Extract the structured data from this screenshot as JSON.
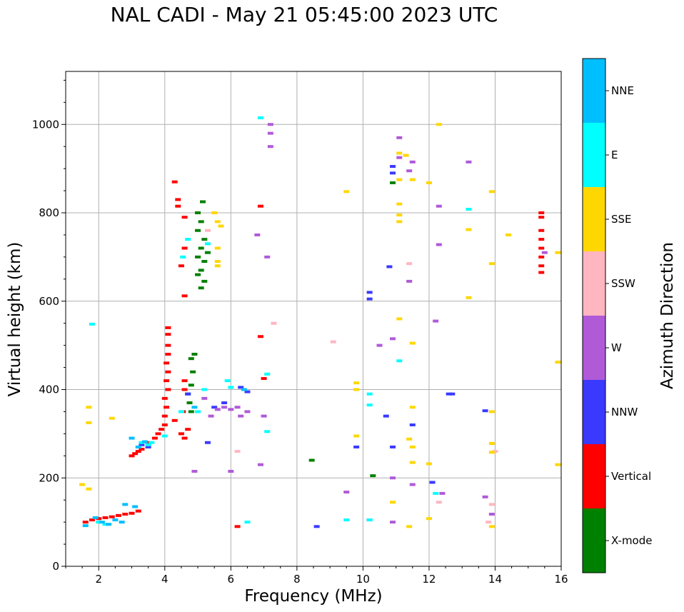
{
  "chart_data": {
    "type": "scatter",
    "title": "NAL CADI - May 21 05:45:00 2023 UTC",
    "xlabel": "Frequency (MHz)",
    "ylabel": "Virtual height (km)",
    "xlim": [
      1,
      16
    ],
    "ylim": [
      0,
      1120
    ],
    "xticks": [
      2,
      4,
      6,
      8,
      10,
      12,
      14,
      16
    ],
    "yticks": [
      0,
      200,
      400,
      600,
      800,
      1000
    ],
    "grid": true,
    "colorbar": {
      "label": "Azimuth Direction",
      "categories": [
        {
          "name": "X-mode",
          "color": "#008000"
        },
        {
          "name": "Vertical",
          "color": "#ff0000"
        },
        {
          "name": "NNW",
          "color": "#3a3aff"
        },
        {
          "name": "W",
          "color": "#b05ad8"
        },
        {
          "name": "SSW",
          "color": "#ffb6c1"
        },
        {
          "name": "SSE",
          "color": "#ffd700"
        },
        {
          "name": "E",
          "color": "#00ffff"
        },
        {
          "name": "NNE",
          "color": "#00bfff"
        }
      ]
    },
    "series": [
      {
        "name": "X-mode",
        "points": [
          [
            5.0,
            800
          ],
          [
            5.1,
            780
          ],
          [
            5.0,
            760
          ],
          [
            5.2,
            740
          ],
          [
            5.1,
            720
          ],
          [
            5.0,
            700
          ],
          [
            5.2,
            690
          ],
          [
            5.1,
            670
          ],
          [
            5.0,
            660
          ],
          [
            5.2,
            645
          ],
          [
            5.1,
            630
          ],
          [
            5.3,
            710
          ],
          [
            4.9,
            480
          ],
          [
            4.8,
            470
          ],
          [
            4.85,
            440
          ],
          [
            4.8,
            410
          ],
          [
            4.7,
            390
          ],
          [
            4.75,
            370
          ],
          [
            4.8,
            350
          ],
          [
            8.45,
            240
          ],
          [
            10.3,
            205
          ],
          [
            10.9,
            868
          ],
          [
            5.15,
            825
          ]
        ]
      },
      {
        "name": "Vertical",
        "points": [
          [
            1.6,
            100
          ],
          [
            1.8,
            105
          ],
          [
            2.0,
            108
          ],
          [
            2.2,
            110
          ],
          [
            2.4,
            112
          ],
          [
            2.6,
            115
          ],
          [
            2.8,
            118
          ],
          [
            3.0,
            120
          ],
          [
            3.2,
            125
          ],
          [
            3.0,
            250
          ],
          [
            3.1,
            255
          ],
          [
            3.2,
            260
          ],
          [
            3.3,
            265
          ],
          [
            3.5,
            280
          ],
          [
            3.7,
            290
          ],
          [
            3.8,
            300
          ],
          [
            3.9,
            310
          ],
          [
            4.0,
            320
          ],
          [
            4.0,
            340
          ],
          [
            4.05,
            360
          ],
          [
            4.0,
            380
          ],
          [
            4.1,
            400
          ],
          [
            4.05,
            420
          ],
          [
            4.1,
            440
          ],
          [
            4.05,
            460
          ],
          [
            4.1,
            480
          ],
          [
            4.1,
            500
          ],
          [
            4.1,
            525
          ],
          [
            4.1,
            540
          ],
          [
            4.3,
            330
          ],
          [
            4.5,
            300
          ],
          [
            4.6,
            290
          ],
          [
            4.7,
            310
          ],
          [
            4.55,
            350
          ],
          [
            4.6,
            400
          ],
          [
            4.6,
            420
          ],
          [
            4.4,
            830
          ],
          [
            4.4,
            815
          ],
          [
            4.6,
            790
          ],
          [
            4.6,
            720
          ],
          [
            4.5,
            680
          ],
          [
            4.6,
            612
          ],
          [
            4.3,
            870
          ],
          [
            6.2,
            90
          ],
          [
            6.9,
            815
          ],
          [
            6.9,
            520
          ],
          [
            7.0,
            425
          ],
          [
            15.4,
            800
          ],
          [
            15.4,
            790
          ],
          [
            15.4,
            760
          ],
          [
            15.4,
            740
          ],
          [
            15.4,
            720
          ],
          [
            15.4,
            700
          ],
          [
            15.4,
            680
          ],
          [
            15.4,
            665
          ]
        ]
      },
      {
        "name": "NNW",
        "points": [
          [
            3.3,
            275
          ],
          [
            3.5,
            270
          ],
          [
            4.7,
            390
          ],
          [
            5.3,
            280
          ],
          [
            5.5,
            360
          ],
          [
            5.8,
            370
          ],
          [
            6.3,
            405
          ],
          [
            6.5,
            395
          ],
          [
            8.6,
            90
          ],
          [
            9.8,
            270
          ],
          [
            10.2,
            105
          ],
          [
            10.7,
            340
          ],
          [
            10.8,
            678
          ],
          [
            10.9,
            905
          ],
          [
            10.9,
            890
          ],
          [
            10.9,
            270
          ],
          [
            11.5,
            320
          ],
          [
            12.1,
            190
          ],
          [
            12.6,
            390
          ],
          [
            12.7,
            390
          ],
          [
            13.7,
            352
          ],
          [
            10.2,
            620
          ],
          [
            10.2,
            605
          ]
        ]
      },
      {
        "name": "W",
        "points": [
          [
            4.9,
            215
          ],
          [
            5.2,
            380
          ],
          [
            5.4,
            340
          ],
          [
            5.6,
            355
          ],
          [
            5.8,
            360
          ],
          [
            6.0,
            355
          ],
          [
            6.2,
            360
          ],
          [
            6.5,
            350
          ],
          [
            6.3,
            340
          ],
          [
            6.8,
            750
          ],
          [
            7.1,
            700
          ],
          [
            7.2,
            1000
          ],
          [
            7.2,
            980
          ],
          [
            7.2,
            950
          ],
          [
            7.0,
            340
          ],
          [
            6.9,
            230
          ],
          [
            10.5,
            500
          ],
          [
            10.9,
            200
          ],
          [
            10.9,
            100
          ],
          [
            11.1,
            970
          ],
          [
            11.1,
            925
          ],
          [
            11.4,
            895
          ],
          [
            11.5,
            915
          ],
          [
            11.4,
            645
          ],
          [
            11.5,
            185
          ],
          [
            12.2,
            555
          ],
          [
            12.3,
            815
          ],
          [
            12.4,
            165
          ],
          [
            12.3,
            728
          ],
          [
            13.2,
            915
          ],
          [
            13.7,
            157
          ],
          [
            13.9,
            118
          ],
          [
            15.5,
            710
          ],
          [
            6.0,
            215
          ],
          [
            9.5,
            168
          ],
          [
            10.9,
            515
          ]
        ]
      },
      {
        "name": "SSW",
        "points": [
          [
            5.3,
            760
          ],
          [
            6.2,
            260
          ],
          [
            7.3,
            550
          ],
          [
            9.1,
            508
          ],
          [
            12.3,
            145
          ],
          [
            13.8,
            100
          ],
          [
            13.9,
            140
          ],
          [
            14.0,
            260
          ],
          [
            11.4,
            685
          ]
        ]
      },
      {
        "name": "SSE",
        "points": [
          [
            1.5,
            185
          ],
          [
            1.7,
            175
          ],
          [
            1.7,
            360
          ],
          [
            1.7,
            325
          ],
          [
            2.4,
            335
          ],
          [
            5.5,
            800
          ],
          [
            5.6,
            780
          ],
          [
            5.6,
            720
          ],
          [
            5.6,
            690
          ],
          [
            5.6,
            680
          ],
          [
            5.7,
            770
          ],
          [
            9.5,
            848
          ],
          [
            9.8,
            415
          ],
          [
            9.8,
            400
          ],
          [
            9.8,
            295
          ],
          [
            10.9,
            145
          ],
          [
            11.1,
            935
          ],
          [
            11.1,
            875
          ],
          [
            11.1,
            820
          ],
          [
            11.1,
            795
          ],
          [
            11.1,
            780
          ],
          [
            11.1,
            560
          ],
          [
            11.3,
            930
          ],
          [
            11.4,
            90
          ],
          [
            11.5,
            505
          ],
          [
            11.5,
            360
          ],
          [
            11.5,
            270
          ],
          [
            11.5,
            235
          ],
          [
            11.4,
            288
          ],
          [
            11.5,
            875
          ],
          [
            12.0,
            868
          ],
          [
            12.0,
            232
          ],
          [
            12.0,
            108
          ],
          [
            12.3,
            1000
          ],
          [
            13.2,
            762
          ],
          [
            13.2,
            608
          ],
          [
            13.9,
            848
          ],
          [
            13.9,
            685
          ],
          [
            13.9,
            350
          ],
          [
            13.9,
            278
          ],
          [
            13.9,
            258
          ],
          [
            13.9,
            90
          ],
          [
            14.4,
            750
          ],
          [
            15.9,
            710
          ],
          [
            15.9,
            462
          ],
          [
            15.9,
            230
          ]
        ]
      },
      {
        "name": "E",
        "points": [
          [
            1.8,
            548
          ],
          [
            2.0,
            100
          ],
          [
            2.2,
            95
          ],
          [
            3.3,
            280
          ],
          [
            3.5,
            275
          ],
          [
            3.6,
            280
          ],
          [
            4.0,
            295
          ],
          [
            4.5,
            350
          ],
          [
            4.55,
            700
          ],
          [
            4.7,
            740
          ],
          [
            5.0,
            350
          ],
          [
            5.2,
            400
          ],
          [
            5.3,
            730
          ],
          [
            5.9,
            420
          ],
          [
            6.0,
            405
          ],
          [
            6.5,
            100
          ],
          [
            6.9,
            1015
          ],
          [
            7.1,
            435
          ],
          [
            7.1,
            305
          ],
          [
            10.2,
            390
          ],
          [
            10.2,
            365
          ],
          [
            10.2,
            105
          ],
          [
            11.1,
            465
          ],
          [
            12.2,
            165
          ],
          [
            13.2,
            808
          ],
          [
            9.5,
            105
          ]
        ]
      },
      {
        "name": "NNE",
        "points": [
          [
            1.6,
            92
          ],
          [
            1.9,
            110
          ],
          [
            2.1,
            100
          ],
          [
            2.3,
            95
          ],
          [
            2.5,
            105
          ],
          [
            2.7,
            100
          ],
          [
            3.0,
            290
          ],
          [
            3.2,
            270
          ],
          [
            3.4,
            282
          ],
          [
            4.9,
            360
          ],
          [
            6.4,
            400
          ],
          [
            2.8,
            140
          ],
          [
            3.1,
            135
          ]
        ]
      }
    ]
  }
}
